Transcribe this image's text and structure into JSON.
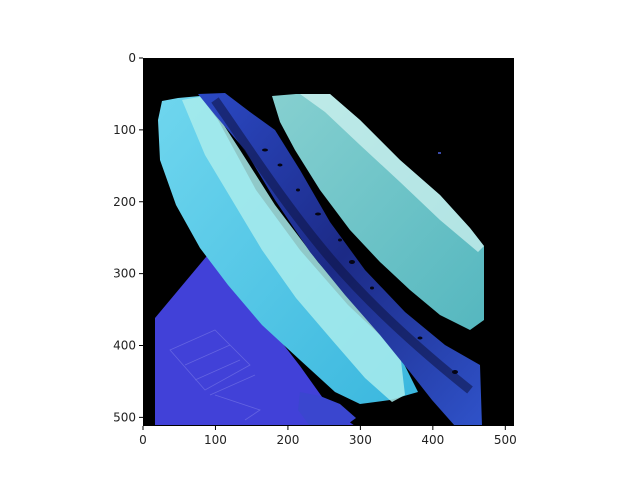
{
  "chart_data": {
    "type": "image",
    "title": "",
    "xlabel": "",
    "ylabel": "",
    "xlim": [
      0,
      512
    ],
    "ylim": [
      512,
      0
    ],
    "x_ticks": [
      0,
      100,
      200,
      300,
      400,
      500
    ],
    "y_ticks": [
      0,
      100,
      200,
      300,
      400,
      500
    ],
    "grid": false,
    "legend": "none",
    "image_content": "microscopy pseudo-colored tissue section (blue/cyan) on black background",
    "colors": {
      "background": "#000000",
      "light_cyan": "#4fd0e8",
      "pale_cyan": "#aef0f0",
      "teal": "#63b9b6",
      "deep_blue": "#2a3fb0",
      "navy": "#18257a",
      "violet_blue": "#4a4ae0"
    }
  }
}
